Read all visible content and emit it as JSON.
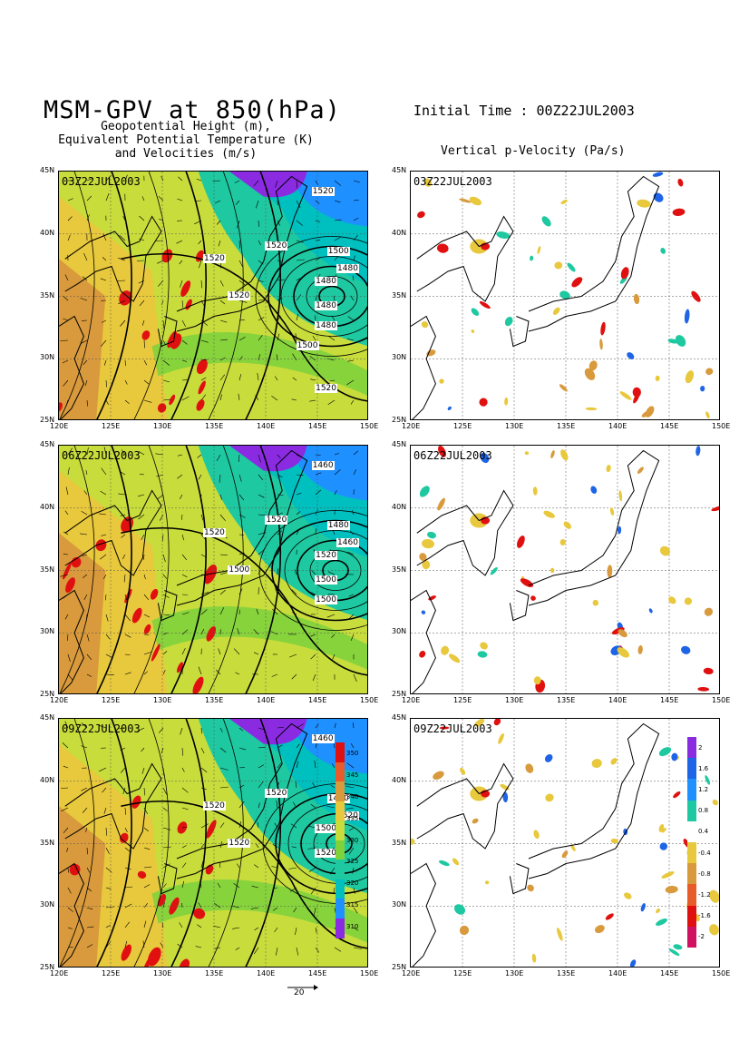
{
  "header": {
    "main_title": "MSM-GPV at 850(hPa)",
    "left_subtitle": "Geopotential Height (m),\nEquivalent Potential Temperature (K)\nand Velocities (m/s)",
    "initial_time": "Initial Time : 00Z22JUL2003",
    "right_subtitle": "Vertical p-Velocity (Pa/s)"
  },
  "axes": {
    "lon_ticks": [
      "120E",
      "125E",
      "130E",
      "135E",
      "140E",
      "145E",
      "150E"
    ],
    "lat_ticks": [
      "45N",
      "40N",
      "35N",
      "30N",
      "25N"
    ]
  },
  "colors": {
    "ept_scale": [
      "#8a2be2",
      "#1e90ff",
      "#00bfbf",
      "#1ec8a0",
      "#7fd23c",
      "#c8dc3c",
      "#e8c83c",
      "#d89a3c",
      "#e85c2c",
      "#e01010"
    ],
    "omega_negative": "#e01010",
    "omega_positive": "#1e64e6",
    "land_outline": "#000000"
  },
  "rows": [
    {
      "time": "03Z22JUL2003",
      "left_labels": [
        "1520",
        "1520",
        "1520",
        "1520",
        "1500",
        "1480",
        "1480",
        "1480",
        "1480",
        "1500",
        "1520"
      ]
    },
    {
      "time": "06Z22JUL2003",
      "left_labels": [
        "1460",
        "1520",
        "1520",
        "1500",
        "1480",
        "1460",
        "1520",
        "1500",
        "1500"
      ]
    },
    {
      "time": "09Z22JUL2003",
      "left_labels": [
        "1460",
        "1520",
        "1520",
        "1520",
        "1460",
        "1520",
        "1500",
        "1520"
      ]
    }
  ],
  "ept_colorbar": {
    "labels": [
      "350",
      "345",
      "340",
      "335",
      "330",
      "325",
      "320",
      "315",
      "310"
    ]
  },
  "omega_colorbar": {
    "labels": [
      "2",
      "1.6",
      "1.2",
      "0.8",
      "0.4",
      "-0.4",
      "-0.8",
      "-1.2",
      "-1.6",
      "-2"
    ]
  },
  "vector_reference": {
    "value": "20"
  }
}
